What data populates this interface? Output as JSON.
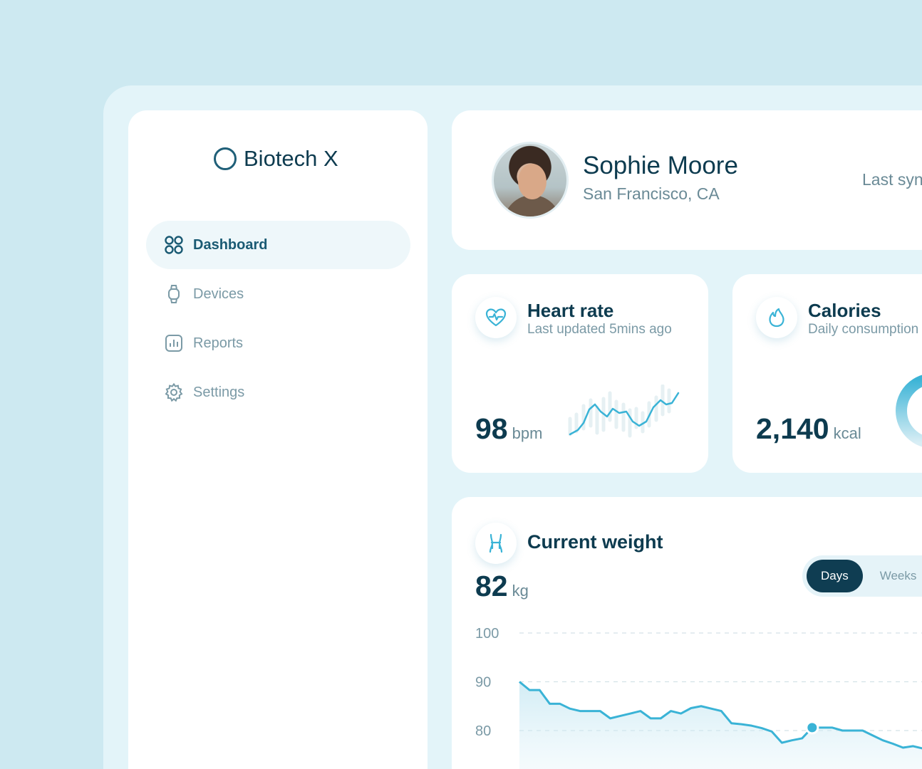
{
  "brand": {
    "name": "Biotech X"
  },
  "nav": [
    {
      "label": "Dashboard",
      "icon": "grid-icon",
      "active": true
    },
    {
      "label": "Devices",
      "icon": "watch-icon",
      "active": false
    },
    {
      "label": "Reports",
      "icon": "chart-icon",
      "active": false
    },
    {
      "label": "Settings",
      "icon": "gear-icon",
      "active": false
    }
  ],
  "profile": {
    "name": "Sophie Moore",
    "location": "San Francisco, CA",
    "sync_label": "Last syn"
  },
  "heart_rate": {
    "title": "Heart rate",
    "subtitle": "Last updated 5mins ago",
    "value": "98",
    "unit": "bpm"
  },
  "calories": {
    "title": "Calories",
    "subtitle": "Daily consumption",
    "value": "2,140",
    "unit": "kcal"
  },
  "weight": {
    "title": "Current weight",
    "value": "82",
    "unit": "kg",
    "toggle": [
      "Days",
      "Weeks"
    ],
    "active_toggle": "Days"
  },
  "colors": {
    "accent": "#3ab3d6",
    "dark": "#0d3b4f",
    "muted": "#7b9aa6"
  },
  "chart_data": {
    "type": "area",
    "y_ticks": [
      "100",
      "90",
      "80"
    ],
    "ylim": [
      70,
      100
    ],
    "grid": true,
    "values": [
      90,
      88.3,
      88.3,
      85.5,
      85.5,
      84.5,
      84,
      84,
      84,
      82.5,
      83,
      83.5,
      84,
      82.5,
      82.5,
      84,
      83.5,
      84.6,
      85,
      84.5,
      84,
      81.5,
      81.3,
      81,
      80.5,
      79.8,
      77.5,
      78,
      78.4,
      80.6,
      80.6,
      80.6,
      80,
      80,
      80,
      79,
      78,
      77.3,
      76.5,
      76.8,
      76.3,
      75.8,
      75.5
    ],
    "highlight_index": 29
  }
}
